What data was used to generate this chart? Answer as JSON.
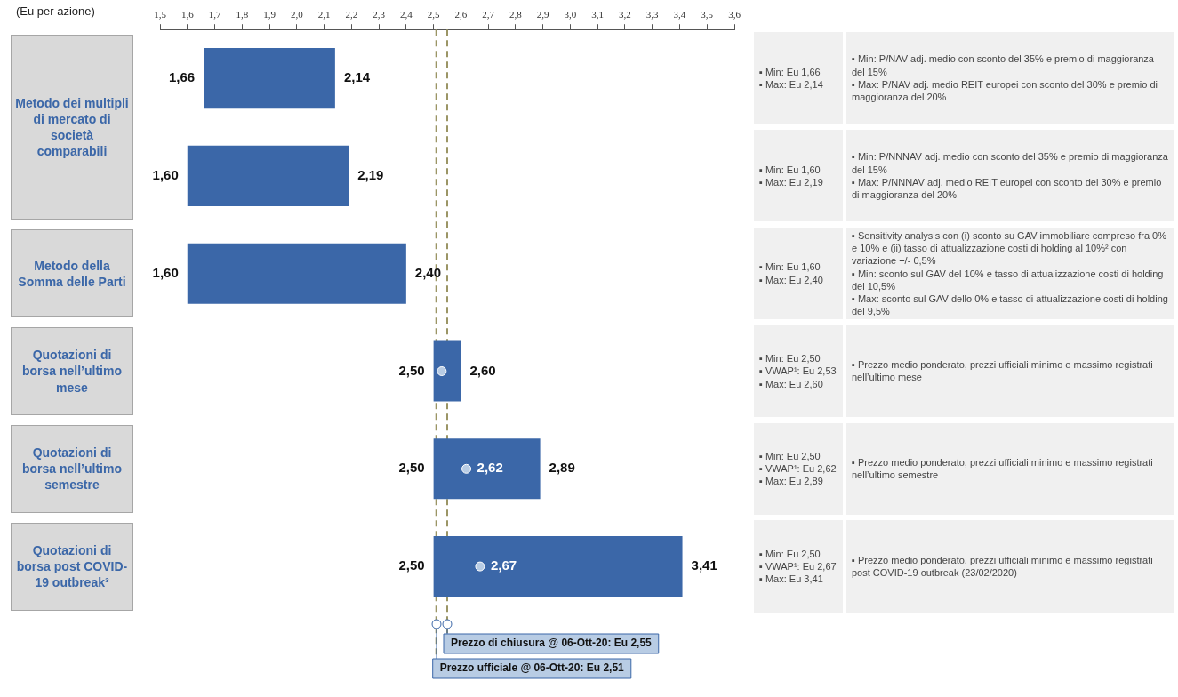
{
  "chart_data": {
    "type": "bar",
    "orientation": "horizontal",
    "xlabel": "(Eu per azione)",
    "categories": [
      "Metodo dei multipli di mercato di società comparabili",
      null,
      "Metodo della Somma delle Parti",
      "Quotazioni di borsa nell’ultimo mese",
      "Quotazioni di borsa nell’ultimo semestre",
      "Quotazioni di borsa post COVID-19 outbreak³"
    ],
    "series": [
      {
        "type": "bar",
        "color": "#3b67a8",
        "base": [
          1.66,
          1.6,
          1.6,
          2.5,
          2.5,
          2.5
        ],
        "values": [
          0.48,
          0.59,
          0.8,
          0.1,
          0.39,
          0.91
        ],
        "value_labels": [
          "2,14",
          "2,19",
          "2,40",
          "2,60",
          "2,89",
          "3,41"
        ]
      },
      {
        "type": "scatter",
        "color": "#b8cce4",
        "values": [
          null,
          null,
          null,
          2.53,
          2.62,
          2.67
        ],
        "value_labels": [
          null,
          null,
          null,
          null,
          "2,62",
          "2,67"
        ]
      }
    ],
    "marker": "circle",
    "xlim": [
      1.5,
      3.6
    ],
    "xticks": [
      {
        "value": 1.5,
        "label": "1,5"
      },
      {
        "value": 1.6,
        "label": "1,6"
      },
      {
        "value": 1.7,
        "label": "1,7"
      },
      {
        "value": 1.8,
        "label": "1,8"
      },
      {
        "value": 1.9,
        "label": "1,9"
      },
      {
        "value": 2.0,
        "label": "2,0"
      },
      {
        "value": 2.1,
        "label": "2,1"
      },
      {
        "value": 2.2,
        "label": "2,2"
      },
      {
        "value": 2.3,
        "label": "2,3"
      },
      {
        "value": 2.4,
        "label": "2,4"
      },
      {
        "value": 2.5,
        "label": "2,5"
      },
      {
        "value": 2.6,
        "label": "2,6"
      },
      {
        "value": 2.7,
        "label": "2,7"
      },
      {
        "value": 2.8,
        "label": "2,8"
      },
      {
        "value": 2.9,
        "label": "2,9"
      },
      {
        "value": 3.0,
        "label": "3,0"
      },
      {
        "value": 3.1,
        "label": "3,1"
      },
      {
        "value": 3.2,
        "label": "3,2"
      },
      {
        "value": 3.3,
        "label": "3,3"
      },
      {
        "value": 3.4,
        "label": "3,4"
      },
      {
        "value": 3.5,
        "label": "3,5"
      },
      {
        "value": 3.6,
        "label": "3,6"
      }
    ],
    "ref_lines": [
      {
        "axis": "x",
        "value": 2.51,
        "label": "Prezzo ufficiale @ 06-Ott-20: Eu 2,51",
        "color": "#9b9565",
        "line_style": "dashed"
      },
      {
        "axis": "x",
        "value": 2.55,
        "label": "Prezzo di chiusura @ 06-Ott-20: Eu 2,55",
        "color": "#9b9565",
        "line_style": "dashed"
      }
    ],
    "annotations": [
      "1,66",
      "1,60",
      "1,60",
      "2,50",
      "2,50",
      "2,50",
      "▪ Min: Eu 1,66\n▪ Max: Eu 2,14",
      "▪ Min: P/NAV adj. medio con sconto del 35% e premio di maggioranza del 15%\n▪ Max: P/NAV adj. medio REIT europei con sconto del 30% e premio di maggioranza del 20%",
      "▪ Min: Eu 1,60\n▪ Max: Eu 2,19",
      "▪ Min: P/NNNAV adj. medio con sconto del 35% e premio di maggioranza del 15%\n▪ Max: P/NNNAV adj. medio REIT europei con sconto del 30% e premio di maggioranza del 20%",
      "▪ Min: Eu 1,60\n▪ Max: Eu 2,40",
      "▪ Sensitivity analysis con (i) sconto su GAV immobiliare compreso fra 0% e 10% e (ii) tasso di attualizzazione costi di holding al 10%² con variazione +/- 0,5%\n▪ Min: sconto sul GAV del 10% e tasso di attualizzazione costi di holding del 10,5%\n▪ Max: sconto sul GAV dello 0% e tasso di attualizzazione costi di holding del 9,5%",
      "▪ Min: Eu 2,50\n▪ VWAP¹: Eu 2,53\n▪ Max: Eu 2,60",
      "▪ Prezzo medio ponderato, prezzi ufficiali minimo e massimo registrati nell’ultimo mese",
      "▪ Min: Eu 2,50\n▪ VWAP¹: Eu 2,62\n▪ Max: Eu 2,89",
      "▪ Prezzo medio ponderato, prezzi ufficiali minimo e massimo registrati nell’ultimo semestre",
      "▪ Min: Eu 2,50\n▪ VWAP¹: Eu 2,67\n▪ Max: Eu 3,41",
      "▪ Prezzo medio ponderato, prezzi ufficiali minimo e massimo registrati post COVID-19 outbreak (23/02/2020)"
    ]
  }
}
